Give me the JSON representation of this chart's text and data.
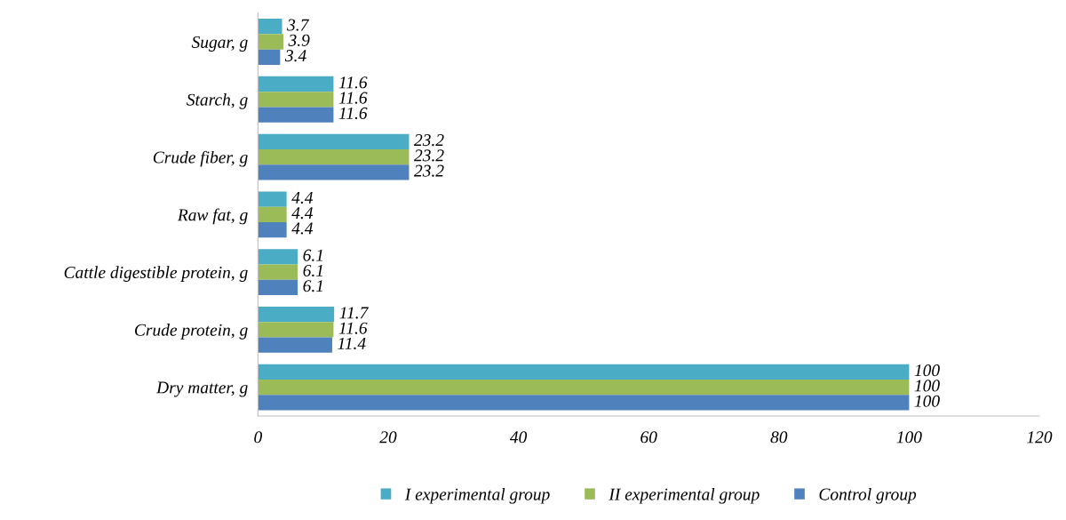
{
  "chart_data": {
    "type": "bar",
    "orientation": "horizontal",
    "categories": [
      "Sugar, g",
      "Starch, g",
      "Crude fiber, g",
      "Raw fat, g",
      "Cattle digestible protein, g",
      "Crude protein, g",
      "Dry matter, g"
    ],
    "series": [
      {
        "name": "I experimental group",
        "color": "#4bacc6",
        "values": [
          3.7,
          11.6,
          23.2,
          4.4,
          6.1,
          11.7,
          100
        ]
      },
      {
        "name": "II experimental group",
        "color": "#9bbb59",
        "values": [
          3.9,
          11.6,
          23.2,
          4.4,
          6.1,
          11.6,
          100
        ]
      },
      {
        "name": "Control group",
        "color": "#4f81bd",
        "values": [
          3.4,
          11.6,
          23.2,
          4.4,
          6.1,
          11.4,
          100
        ]
      }
    ],
    "xlim": [
      0,
      120
    ],
    "xticks": [
      0,
      20,
      40,
      60,
      80,
      100,
      120
    ],
    "data_labels": true,
    "grid": false,
    "legend": "bottom"
  }
}
